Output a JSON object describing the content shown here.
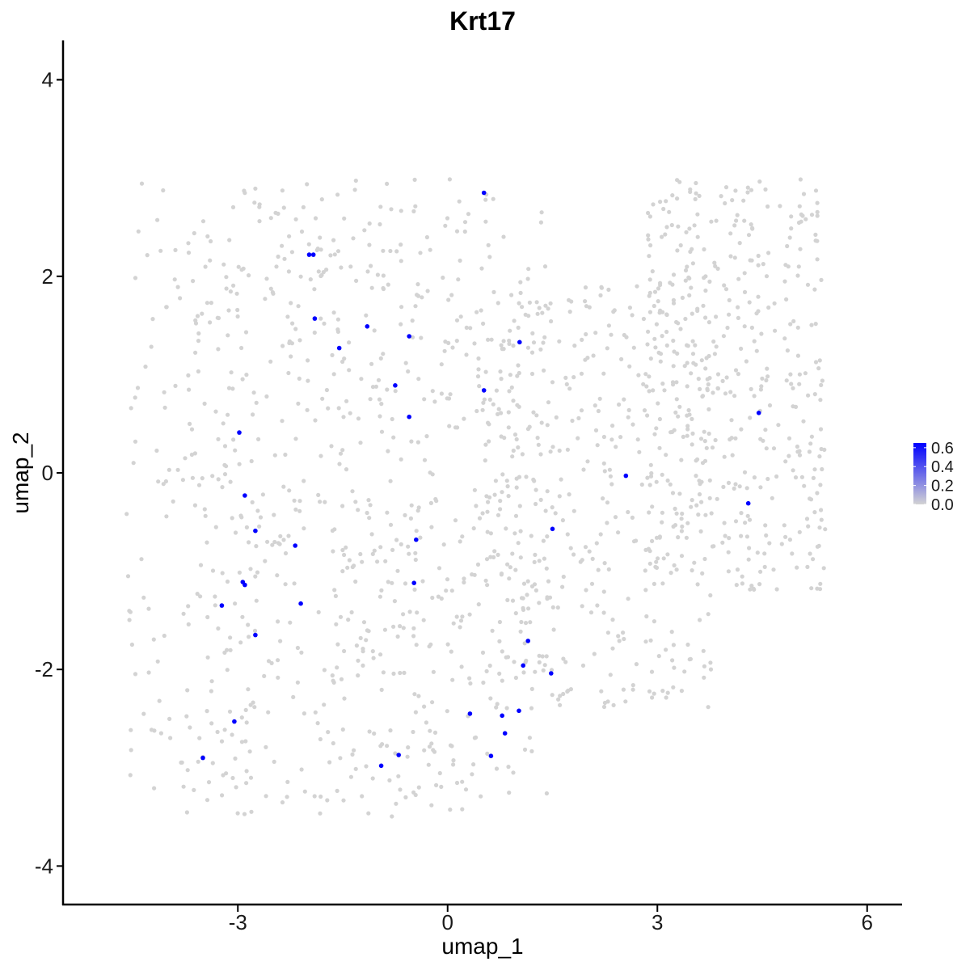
{
  "chart_data": {
    "type": "scatter",
    "title": "Krt17",
    "xlabel": "umap_1",
    "ylabel": "umap_2",
    "xlim": [
      -5.5,
      6.5
    ],
    "ylim": [
      -4.4,
      4.4
    ],
    "x_ticks": [
      -3,
      0,
      3,
      6
    ],
    "y_ticks": [
      -4,
      -2,
      0,
      2,
      4
    ],
    "x_tick_labels": [
      "-3",
      "0",
      "3",
      "6"
    ],
    "y_tick_labels": [
      "-4",
      "-2",
      "0",
      "2",
      "4"
    ],
    "grid": false,
    "legend": {
      "position": "right",
      "type": "colorbar",
      "min": 0.0,
      "max": 0.65,
      "labels": [
        "0.6",
        "0.4",
        "0.2",
        "0.0"
      ],
      "label_values": [
        0.6,
        0.4,
        0.2,
        0.0
      ]
    },
    "colors": {
      "low": "#d3d3d3",
      "high": "#0000ff"
    },
    "background_cells": {
      "description_count": 1600,
      "value": 0.0,
      "regions": [
        {
          "x_range": [
            -4.6,
            0.6
          ],
          "y_range": [
            -3.5,
            3.0
          ]
        },
        {
          "x_range": [
            -3.8,
            1.5
          ],
          "y_range": [
            -3.3,
            2.9
          ]
        },
        {
          "x_range": [
            0.5,
            3.8
          ],
          "y_range": [
            -2.4,
            1.9
          ]
        },
        {
          "x_range": [
            2.8,
            5.4
          ],
          "y_range": [
            -1.2,
            3.0
          ]
        }
      ]
    },
    "expressing_cells": {
      "x": [
        0.52,
        -1.98,
        -1.92,
        -1.9,
        -1.15,
        -0.55,
        -1.55,
        1.03,
        -0.75,
        0.52,
        -0.55,
        4.45,
        -2.98,
        2.55,
        -2.9,
        4.3,
        -2.75,
        -2.18,
        1.5,
        -0.45,
        -2.93,
        -2.9,
        -0.48,
        -3.23,
        -2.1,
        -2.75,
        1.15,
        1.08,
        1.48,
        -3.05,
        0.32,
        0.78,
        0.82,
        1.02,
        -3.5,
        -0.7,
        -0.95,
        0.62
      ],
      "y": [
        2.85,
        2.22,
        2.22,
        1.57,
        1.49,
        1.39,
        1.27,
        1.33,
        0.89,
        0.84,
        0.57,
        0.61,
        0.41,
        -0.03,
        -0.23,
        -0.31,
        -0.59,
        -0.74,
        -0.57,
        -0.68,
        -1.11,
        -1.14,
        -1.12,
        -1.35,
        -1.33,
        -1.65,
        -1.71,
        -1.96,
        -2.04,
        -2.53,
        -2.45,
        -2.47,
        -2.65,
        -2.42,
        -2.9,
        -2.87,
        -2.98,
        -2.88
      ],
      "values": [
        0.6,
        0.6,
        0.6,
        0.6,
        0.6,
        0.6,
        0.6,
        0.6,
        0.6,
        0.6,
        0.6,
        0.6,
        0.6,
        0.6,
        0.6,
        0.6,
        0.6,
        0.6,
        0.6,
        0.6,
        0.6,
        0.6,
        0.6,
        0.6,
        0.6,
        0.6,
        0.6,
        0.6,
        0.6,
        0.6,
        0.6,
        0.6,
        0.6,
        0.6,
        0.6,
        0.6,
        0.6,
        0.6
      ]
    }
  }
}
